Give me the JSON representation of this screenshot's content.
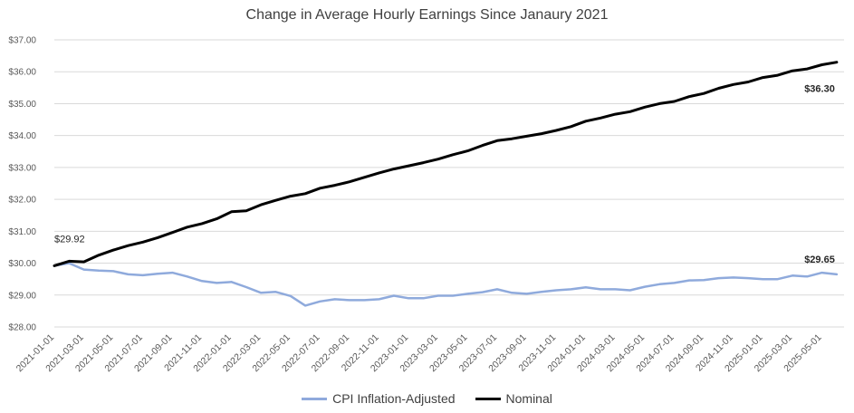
{
  "chart_data": {
    "type": "line",
    "title": "Change in Average Hourly Earnings Since Janaury 2021",
    "ylim": [
      28,
      37
    ],
    "yticks": [
      "$28.00",
      "$29.00",
      "$30.00",
      "$31.00",
      "$32.00",
      "$33.00",
      "$34.00",
      "$35.00",
      "$36.00",
      "$37.00"
    ],
    "x_labels": [
      "2021-01-01",
      "2021-03-01",
      "2021-05-01",
      "2021-07-01",
      "2021-09-01",
      "2021-11-01",
      "2022-01-01",
      "2022-03-01",
      "2022-05-01",
      "2022-07-01",
      "2022-09-01",
      "2022-11-01",
      "2023-01-01",
      "2023-03-01",
      "2023-05-01",
      "2023-07-01",
      "2023-09-01",
      "2023-11-01",
      "2024-01-01",
      "2024-03-01",
      "2024-05-01",
      "2024-07-01",
      "2024-09-01",
      "2024-11-01",
      "2025-01-01",
      "2025-03-01",
      "2025-05-01"
    ],
    "grid": true,
    "legend_position": "bottom",
    "series": [
      {
        "name": "CPI Inflation-Adjusted",
        "color": "#8FAADC",
        "values": [
          29.92,
          30.0,
          29.8,
          29.77,
          29.75,
          29.65,
          29.62,
          29.67,
          29.7,
          29.58,
          29.44,
          29.38,
          29.41,
          29.25,
          29.07,
          29.1,
          28.97,
          28.67,
          28.8,
          28.87,
          28.84,
          28.84,
          28.87,
          28.98,
          28.9,
          28.9,
          28.98,
          28.98,
          29.04,
          29.09,
          29.18,
          29.07,
          29.04,
          29.1,
          29.15,
          29.18,
          29.24,
          29.18,
          29.18,
          29.15,
          29.26,
          29.34,
          29.38,
          29.46,
          29.47,
          29.53,
          29.55,
          29.53,
          29.5,
          29.5,
          29.61,
          29.58,
          29.7,
          29.65
        ]
      },
      {
        "name": "Nominal",
        "color": "#000000",
        "values": [
          29.92,
          30.06,
          30.04,
          30.25,
          30.41,
          30.55,
          30.66,
          30.8,
          30.96,
          31.13,
          31.24,
          31.39,
          31.61,
          31.64,
          31.83,
          31.97,
          32.1,
          32.18,
          32.35,
          32.44,
          32.55,
          32.69,
          32.83,
          32.95,
          33.05,
          33.15,
          33.26,
          33.4,
          33.52,
          33.69,
          33.84,
          33.9,
          33.98,
          34.06,
          34.16,
          34.28,
          34.45,
          34.55,
          34.67,
          34.75,
          34.89,
          35.0,
          35.07,
          35.22,
          35.32,
          35.48,
          35.6,
          35.68,
          35.82,
          35.89,
          36.03,
          36.09,
          36.22,
          36.3
        ]
      }
    ],
    "annotations": [
      {
        "text": "$29.92",
        "series": 0,
        "index": 0,
        "bold": false
      },
      {
        "text": "$36.30",
        "series": 1,
        "index": 53,
        "bold": true
      },
      {
        "text": "$29.65",
        "series": 0,
        "index": 53,
        "bold": true
      }
    ]
  }
}
